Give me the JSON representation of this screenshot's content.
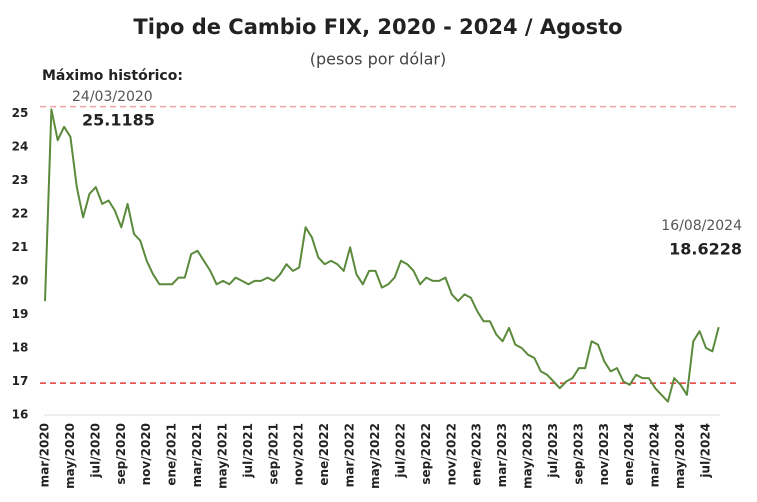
{
  "chart_data": {
    "type": "line",
    "title": "Tipo de Cambio FIX, 2020 - 2024 / Agosto",
    "subtitle": "(pesos por dólar)",
    "annotations": [
      {
        "text": "Máximo histórico:"
      },
      {
        "text": "24/03/2020"
      },
      {
        "text": "25.1185"
      },
      {
        "text": "16/08/2024"
      },
      {
        "text": "18.6228"
      }
    ],
    "categories": [
      "mar/2020",
      null,
      null,
      null,
      "may/2020",
      null,
      null,
      null,
      "jul/2020",
      null,
      null,
      null,
      "sep/2020",
      null,
      null,
      null,
      "nov/2020",
      null,
      null,
      null,
      "ene/2021",
      null,
      null,
      null,
      "mar/2021",
      null,
      null,
      null,
      "may/2021",
      null,
      null,
      null,
      "jul/2021",
      null,
      null,
      null,
      "sep/2021",
      null,
      null,
      null,
      "nov/2021",
      null,
      null,
      null,
      "ene/2022",
      null,
      null,
      null,
      "mar/2022",
      null,
      null,
      null,
      "may/2022",
      null,
      null,
      null,
      "jul/2022",
      null,
      null,
      null,
      "sep/2022",
      null,
      null,
      null,
      "nov/2022",
      null,
      null,
      null,
      "ene/2023",
      null,
      null,
      null,
      "mar/2023",
      null,
      null,
      null,
      "may/2023",
      null,
      null,
      null,
      "jul/2023",
      null,
      null,
      null,
      "sep/2023",
      null,
      null,
      null,
      "nov/2023",
      null,
      null,
      null,
      "ene/2024",
      null,
      null,
      null,
      "mar/2024",
      null,
      null,
      null,
      "may/2024",
      null,
      null,
      null,
      "jul/2024",
      null,
      null
    ],
    "series": [
      {
        "name": "FIX",
        "color": "#5b8a3c",
        "values": [
          19.4,
          25.1185,
          24.2,
          24.6,
          24.3,
          22.8,
          21.9,
          22.6,
          22.8,
          22.3,
          22.4,
          22.1,
          21.6,
          22.3,
          21.4,
          21.2,
          20.6,
          20.2,
          19.9,
          19.9,
          19.9,
          20.1,
          20.1,
          20.8,
          20.9,
          20.6,
          20.3,
          19.9,
          20.0,
          19.9,
          20.1,
          20.0,
          19.9,
          20.0,
          20.0,
          20.1,
          20.0,
          20.2,
          20.5,
          20.3,
          20.4,
          21.6,
          21.3,
          20.7,
          20.5,
          20.6,
          20.5,
          20.3,
          21.0,
          20.2,
          19.9,
          20.3,
          20.3,
          19.8,
          19.9,
          20.1,
          20.6,
          20.5,
          20.3,
          19.9,
          20.1,
          20.0,
          20.0,
          20.1,
          19.6,
          19.4,
          19.6,
          19.5,
          19.1,
          18.8,
          18.8,
          18.4,
          18.2,
          18.6,
          18.1,
          18.0,
          17.8,
          17.7,
          17.3,
          17.2,
          17.0,
          16.8,
          17.0,
          17.1,
          17.4,
          17.4,
          18.2,
          18.1,
          17.6,
          17.3,
          17.4,
          17.0,
          16.9,
          17.2,
          17.1,
          17.1,
          16.8,
          16.6,
          16.4,
          17.1,
          16.9,
          16.6,
          18.2,
          18.5,
          18.0,
          17.9,
          18.6228
        ]
      }
    ],
    "reference_lines": [
      {
        "value": 25.2,
        "color": "#f2a3a3"
      },
      {
        "value": 16.95,
        "color": "#e23a3a"
      }
    ],
    "ylim": [
      16,
      25.25
    ],
    "yticks": [
      16,
      17,
      18,
      19,
      20,
      21,
      22,
      23,
      24,
      25
    ],
    "grid": false
  }
}
